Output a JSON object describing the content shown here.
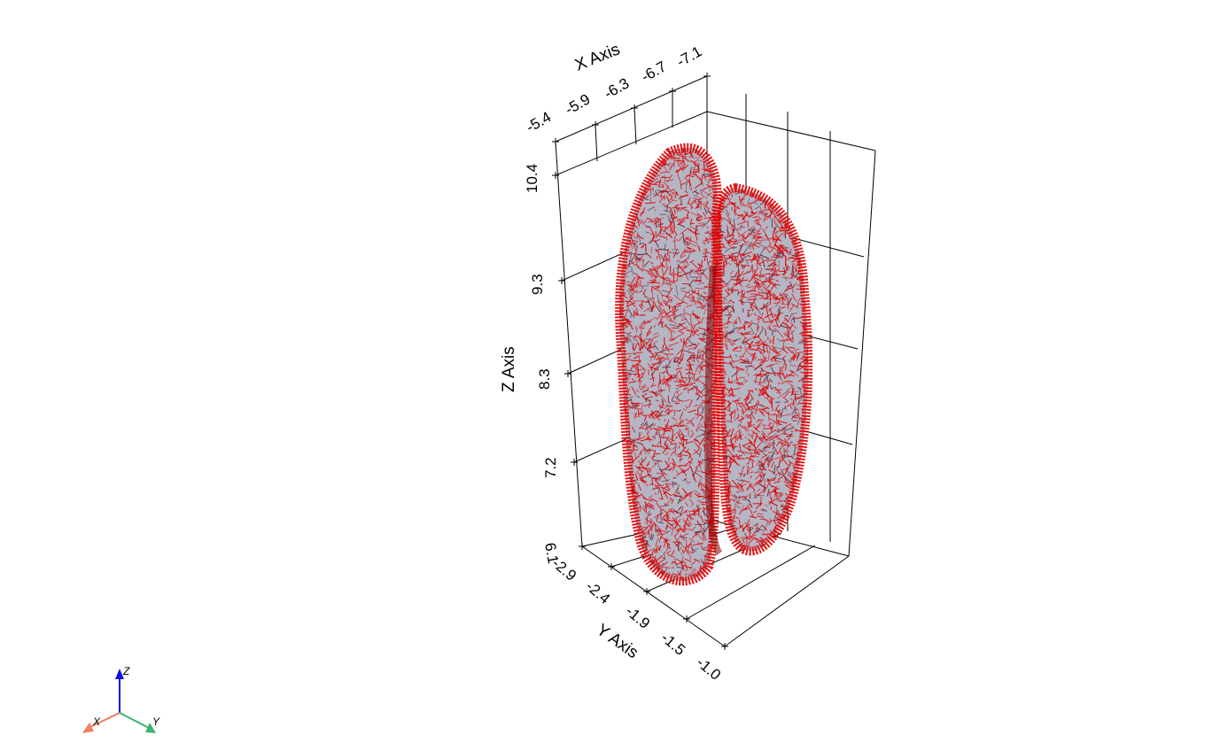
{
  "scene": {
    "axes": {
      "x": {
        "title": "X Axis",
        "ticks": [
          "-5.4",
          "-5.9",
          "-6.3",
          "-6.7",
          "-7.1"
        ]
      },
      "y": {
        "title": "Y Axis",
        "ticks": [
          "-2.9",
          "-2.4",
          "-1.9",
          "-1.5",
          "-1.0"
        ]
      },
      "z": {
        "title": "Z Axis",
        "ticks": [
          "10.4",
          "9.3",
          "8.3",
          "7.2",
          "6.1"
        ]
      }
    },
    "orientation_triad": {
      "x": "X",
      "y": "Y",
      "z": "Z"
    },
    "colors": {
      "background": "#ffffff",
      "surface": "#b4b6c4",
      "glyphs": "#e00000",
      "grid": "#000000",
      "triad_x": "#f08060",
      "triad_y": "#3cb371",
      "triad_z": "#1010e0"
    }
  }
}
